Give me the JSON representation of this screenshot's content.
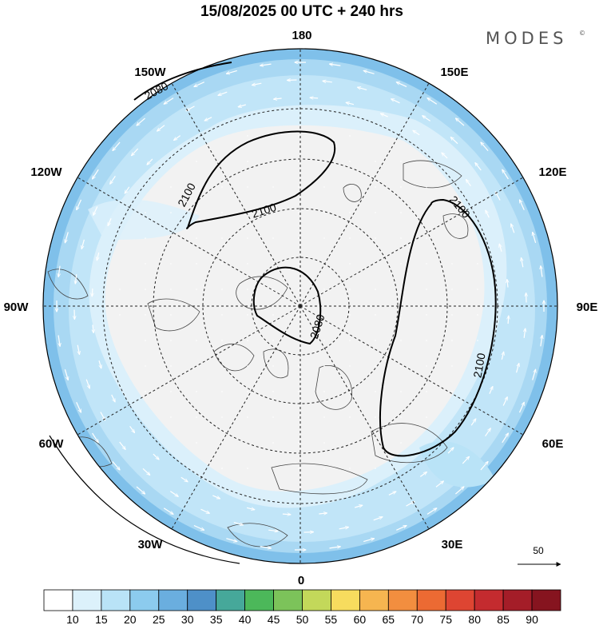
{
  "header": {
    "title": "15/08/2025  00 UTC  + 240 hrs",
    "brand": "MODES",
    "brand_mark": "©"
  },
  "map": {
    "projection": "north-polar-stereographic",
    "longitude_labels": [
      {
        "lon": 180,
        "text": "180"
      },
      {
        "lon": 150,
        "text": "150E"
      },
      {
        "lon": 120,
        "text": "120E"
      },
      {
        "lon": 90,
        "text": "90E"
      },
      {
        "lon": 60,
        "text": "60E"
      },
      {
        "lon": 30,
        "text": "30E"
      },
      {
        "lon": 0,
        "text": "0"
      },
      {
        "lon": -30,
        "text": "30W"
      },
      {
        "lon": -60,
        "text": "60W"
      },
      {
        "lon": -90,
        "text": "90W"
      },
      {
        "lon": -120,
        "text": "120W"
      },
      {
        "lon": -150,
        "text": "150W"
      }
    ],
    "contours": [
      {
        "value": 2080,
        "label": "2080"
      },
      {
        "value": 2100,
        "label": "2100"
      }
    ],
    "wind_reference": {
      "value": "50"
    }
  },
  "legend": {
    "levels": [
      "10",
      "15",
      "20",
      "25",
      "30",
      "35",
      "40",
      "45",
      "50",
      "55",
      "60",
      "65",
      "70",
      "75",
      "80",
      "85",
      "90"
    ],
    "colors": [
      "#ffffff",
      "#dcf1fb",
      "#b9e3f7",
      "#8ccbee",
      "#6aaedf",
      "#4e90c8",
      "#46a89a",
      "#4cb85a",
      "#7cc35a",
      "#c3d85a",
      "#f7dc5e",
      "#f6b550",
      "#f28e3f",
      "#ec6a33",
      "#de4532",
      "#c42b2f",
      "#a41d28",
      "#86141f"
    ]
  }
}
